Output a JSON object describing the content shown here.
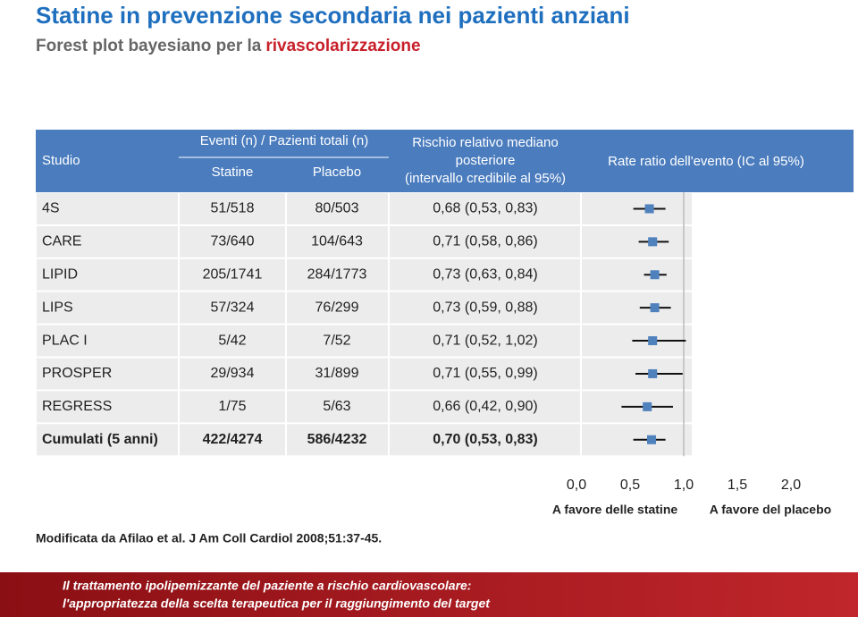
{
  "header": {
    "title": "Statine in prevenzione secondaria nei pazienti anziani",
    "subtitle": "Forest plot bayesiano per la",
    "subtitle_highlight": "rivascolarizzazione"
  },
  "table": {
    "columns": {
      "study": "Studio",
      "events": "Eventi (n) / Pazienti totali (n)",
      "statine": "Statine",
      "placebo": "Placebo",
      "rr": [
        "Rischio relativo mediano",
        "posteriore",
        "(intervallo credibile al 95%)"
      ],
      "plot": "Rate ratio dell'evento (IC al 95%)"
    },
    "rows": [
      {
        "study": "4S",
        "statine": "51/518",
        "placebo": "80/503",
        "rr": 0.68,
        "ci": [
          0.53,
          0.83
        ],
        "rr_label": "0,68 (0,53, 0,83)"
      },
      {
        "study": "CARE",
        "statine": "73/640",
        "placebo": "104/643",
        "rr": 0.71,
        "ci": [
          0.58,
          0.86
        ],
        "rr_label": "0,71 (0,58, 0,86)"
      },
      {
        "study": "LIPID",
        "statine": "205/1741",
        "placebo": "284/1773",
        "rr": 0.73,
        "ci": [
          0.63,
          0.84
        ],
        "rr_label": "0,73 (0,63, 0,84)"
      },
      {
        "study": "LIPS",
        "statine": "57/324",
        "placebo": "76/299",
        "rr": 0.73,
        "ci": [
          0.59,
          0.88
        ],
        "rr_label": "0,73 (0,59, 0,88)"
      },
      {
        "study": "PLAC I",
        "statine": "5/42",
        "placebo": "7/52",
        "rr": 0.71,
        "ci": [
          0.52,
          1.02
        ],
        "rr_label": "0,71 (0,52, 1,02)"
      },
      {
        "study": "PROSPER",
        "statine": "29/934",
        "placebo": "31/899",
        "rr": 0.71,
        "ci": [
          0.55,
          0.99
        ],
        "rr_label": "0,71 (0,55, 0,99)"
      },
      {
        "study": "REGRESS",
        "statine": "1/75",
        "placebo": "5/63",
        "rr": 0.66,
        "ci": [
          0.42,
          0.9
        ],
        "rr_label": "0,66 (0,42, 0,90)"
      },
      {
        "study": "Cumulati (5 anni)",
        "statine": "422/4274",
        "placebo": "586/4232",
        "rr": 0.7,
        "ci": [
          0.53,
          0.83
        ],
        "rr_label": "0,70 (0,53, 0,83)"
      }
    ]
  },
  "plot": {
    "xlim": [
      0,
      2
    ],
    "xticks": [
      {
        "value": 0,
        "label": "0,0"
      },
      {
        "value": 0.5,
        "label": "0,5"
      },
      {
        "value": 1,
        "label": "1,0"
      },
      {
        "value": 1.5,
        "label": "1,5"
      },
      {
        "value": 2,
        "label": "2,0"
      }
    ],
    "left_label": "A favore delle statine",
    "right_label": "A favore del placebo"
  },
  "footer": {
    "source": "Modificata da Afilao et al. J Am Coll Cardiol 2008;51:37-45.",
    "banner": [
      "Il trattamento ipolipemizzante del paziente a rischio cardiovascolare:",
      "l'appropriatezza della scelta terapeutica per il raggiungimento del target"
    ]
  }
}
